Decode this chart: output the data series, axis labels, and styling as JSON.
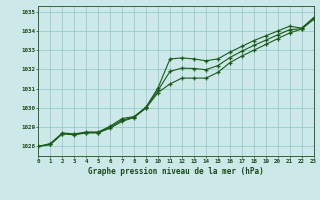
{
  "title": "Graphe pression niveau de la mer (hPa)",
  "background_color": "#cce8e8",
  "grid_color": "#99cccc",
  "line_color": "#1a5c1a",
  "x_min": 0,
  "x_max": 23,
  "y_min": 1027.5,
  "y_max": 1035.3,
  "y_ticks": [
    1028,
    1029,
    1030,
    1031,
    1032,
    1033,
    1034,
    1035
  ],
  "x_ticks": [
    0,
    1,
    2,
    3,
    4,
    5,
    6,
    7,
    8,
    9,
    10,
    11,
    12,
    13,
    14,
    15,
    16,
    17,
    18,
    19,
    20,
    21,
    22,
    23
  ],
  "series1_x": [
    0,
    1,
    2,
    3,
    4,
    5,
    6,
    7,
    8,
    9,
    10,
    11,
    12,
    13,
    14,
    15,
    16,
    17,
    18,
    19,
    20,
    21,
    22,
    23
  ],
  "series1_y": [
    1028.0,
    1028.15,
    1028.7,
    1028.65,
    1028.75,
    1028.75,
    1029.05,
    1029.45,
    1029.55,
    1030.05,
    1031.05,
    1032.55,
    1032.6,
    1032.55,
    1032.45,
    1032.55,
    1032.9,
    1033.2,
    1033.5,
    1033.75,
    1034.0,
    1034.25,
    1034.15,
    1034.7
  ],
  "series2_x": [
    0,
    1,
    2,
    3,
    4,
    5,
    6,
    7,
    8,
    9,
    10,
    11,
    12,
    13,
    14,
    15,
    16,
    17,
    18,
    19,
    20,
    21,
    22,
    23
  ],
  "series2_y": [
    1028.0,
    1028.1,
    1028.65,
    1028.6,
    1028.7,
    1028.7,
    1028.95,
    1029.3,
    1029.5,
    1030.0,
    1030.8,
    1031.25,
    1031.55,
    1031.55,
    1031.55,
    1031.85,
    1032.35,
    1032.7,
    1033.0,
    1033.3,
    1033.6,
    1033.9,
    1034.1,
    1034.6
  ],
  "series3_x": [
    0,
    1,
    2,
    3,
    4,
    5,
    6,
    7,
    8,
    9,
    10,
    11,
    12,
    13,
    14,
    15,
    16,
    17,
    18,
    19,
    20,
    21,
    22,
    23
  ],
  "series3_y": [
    1028.0,
    1028.1,
    1028.67,
    1028.62,
    1028.72,
    1028.72,
    1029.0,
    1029.37,
    1029.52,
    1030.02,
    1030.92,
    1031.9,
    1032.07,
    1032.05,
    1031.99,
    1032.2,
    1032.62,
    1032.95,
    1033.25,
    1033.52,
    1033.8,
    1034.07,
    1034.12,
    1034.65
  ]
}
